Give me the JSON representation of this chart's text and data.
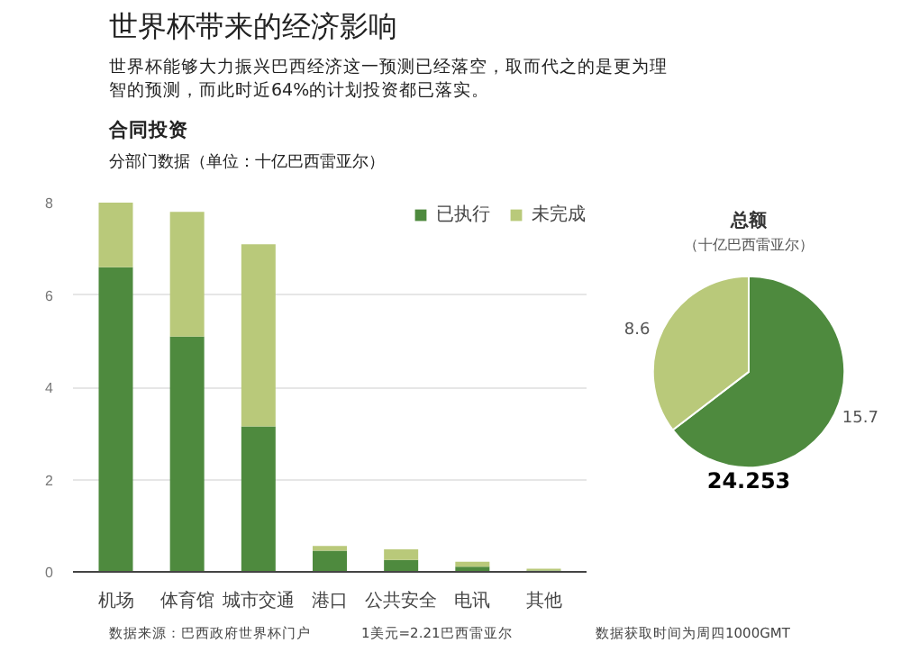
{
  "chart_data": [
    {
      "type": "bar",
      "title": "世界杯带来的经济影响",
      "subtitle": "世界杯能够大力振兴巴西经济这一预测已经落空，取而代之的是更为理智的预测，而此时近64%的计划投资都已落实。",
      "categories": [
        "机场",
        "体育馆",
        "城市交通",
        "港口",
        "公共安全",
        "电讯",
        "其他"
      ],
      "stacked": true,
      "series": [
        {
          "name": "已执行",
          "color": "#4e8a3e",
          "values": [
            6.6,
            5.1,
            3.15,
            0.46,
            0.26,
            0.11,
            0.03
          ]
        },
        {
          "name": "未完成",
          "color": "#b9c97a",
          "values": [
            1.4,
            2.7,
            3.95,
            0.1,
            0.23,
            0.11,
            0.04
          ]
        }
      ],
      "ylim": [
        0,
        8
      ],
      "yticks": [
        0,
        2,
        4,
        6,
        8
      ],
      "grid": "y",
      "legend": "top right",
      "annotations": [
        "合同投资",
        "分部门数据（单位：十亿巴西雷亚尔）",
        "数据来源：巴西政府世界杯门户",
        "1美元=2.21巴西雷亚尔",
        "数据获取时间为周四1000GMT"
      ]
    },
    {
      "type": "pie",
      "title": "总额",
      "subtitle": "（十亿巴西雷亚尔）",
      "categories": [
        null,
        null
      ],
      "values": [
        15.7,
        8.6
      ],
      "colors": [
        "#4e8a3e",
        "#b9c97a"
      ],
      "data_labels": true,
      "annotations": [
        "24.253"
      ]
    }
  ]
}
